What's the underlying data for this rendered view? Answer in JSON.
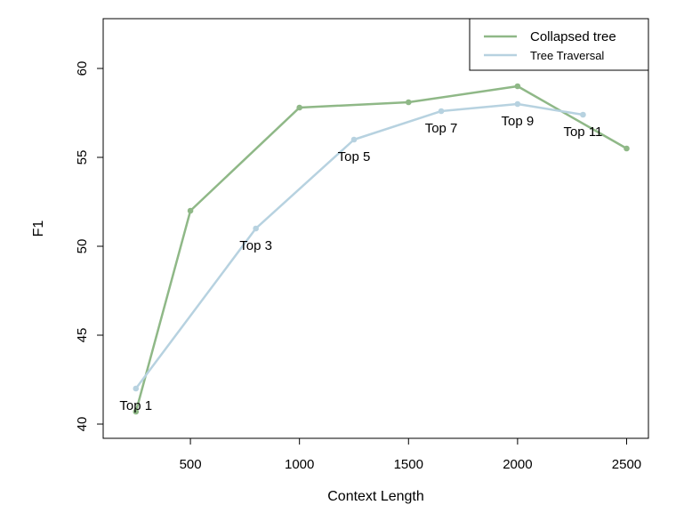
{
  "chart_data": {
    "type": "line",
    "title": "",
    "xlabel": "Context Length",
    "ylabel": "F1",
    "xlim": [
      100,
      2600
    ],
    "ylim": [
      39.2,
      62.8
    ],
    "x_ticks": [
      500,
      1000,
      1500,
      2000,
      2500
    ],
    "y_ticks": [
      40,
      45,
      50,
      55,
      60
    ],
    "grid": false,
    "legend_position": "top-right",
    "series": [
      {
        "name": "Collapsed tree",
        "color": "#8fb887",
        "x": [
          250,
          500,
          1000,
          1500,
          2000,
          2500
        ],
        "y": [
          40.7,
          52.0,
          57.8,
          58.1,
          59.0,
          55.5
        ]
      },
      {
        "name": "Tree Traversal",
        "color": "#b7d2e0",
        "x": [
          250,
          800,
          1250,
          1650,
          2000,
          2300
        ],
        "y": [
          42.0,
          51.0,
          56.0,
          57.6,
          58.0,
          57.4
        ],
        "point_labels": [
          "Top 1",
          "Top 3",
          "Top 5",
          "Top 7",
          "Top 9",
          "Top 11"
        ]
      }
    ]
  }
}
